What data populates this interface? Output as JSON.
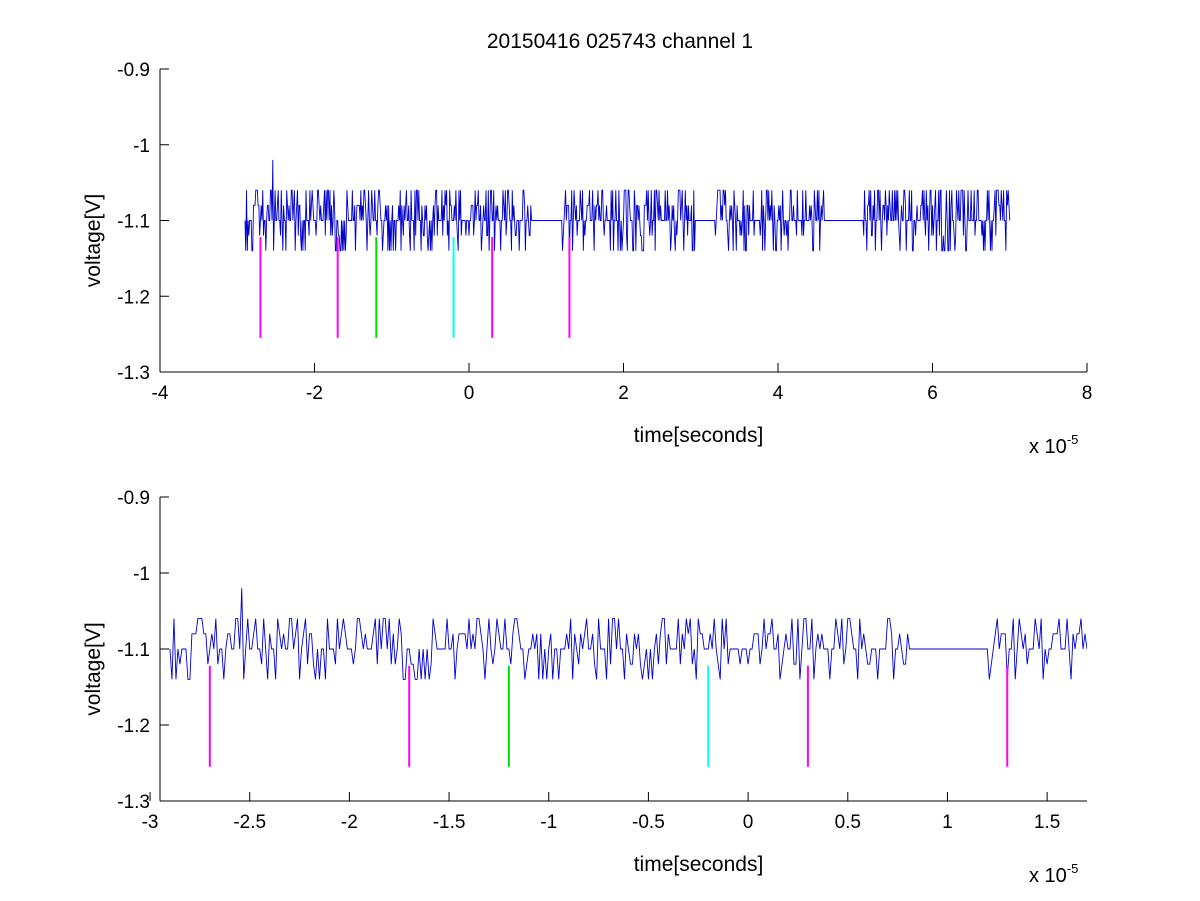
{
  "figure_title": "20150416 025743 channel 1",
  "colors": {
    "trace": "#0000cc",
    "marker_magenta": "#ff00ff",
    "marker_green": "#00dd00",
    "marker_cyan": "#00ffff",
    "axis": "#000000"
  },
  "trace_generation": {
    "dt": 1e-07,
    "seed": 7,
    "baseline_v": -1.1,
    "levels_v": [
      -1.14,
      -1.12,
      -1.1,
      -1.08,
      -1.06
    ],
    "spike": {
      "t": -2.54e-05,
      "v": -1.02
    }
  },
  "chart_data": [
    {
      "type": "line",
      "title": "20150416 025743 channel 1",
      "xlabel": "time[seconds]",
      "ylabel": "voltage[V]",
      "x_exponent_label": {
        "base": "x 10",
        "exp": "-5"
      },
      "xscale": 1e-05,
      "xlim": [
        -4,
        8
      ],
      "ylim": [
        -1.3,
        -0.9
      ],
      "xticks": [
        -4,
        -2,
        0,
        2,
        4,
        6,
        8
      ],
      "yticks": [
        -1.3,
        -1.2,
        -1.1,
        -1.0,
        -0.9
      ],
      "xtick_labels": [
        "-4",
        "-2",
        "0",
        "2",
        "4",
        "6",
        "8"
      ],
      "ytick_labels": [
        "-1.3",
        "-1.2",
        "-1.1",
        "-1",
        "-0.9"
      ],
      "grid": false,
      "series": [
        {
          "x_range": [
            -2.9e-05,
            7e-05
          ],
          "y_values_v": [
            -1.14,
            -1.12,
            -1.1,
            -1.08,
            -1.06,
            -1.02
          ],
          "gap_ranges": [
            [
              -1e-06,
              -5.5e-07
            ],
            [
              8e-06,
              1.18e-05
            ],
            [
              2.95e-05,
              3.18e-05
            ],
            [
              4.6e-05,
              5.1e-05
            ]
          ],
          "dense_ranges": [
            [
              -2.9e-05,
              -2e-06
            ],
            [
              1.18e-05,
              2.8e-05
            ],
            [
              3.2e-05,
              6.9e-05
            ]
          ]
        }
      ],
      "markers": [
        {
          "t": -2.7e-05,
          "y_top": -1.122,
          "y_bottom": -1.255,
          "color": "magenta"
        },
        {
          "t": -1.7e-05,
          "y_top": -1.122,
          "y_bottom": -1.255,
          "color": "magenta"
        },
        {
          "t": -1.2e-05,
          "y_top": -1.122,
          "y_bottom": -1.255,
          "color": "green"
        },
        {
          "t": -2e-06,
          "y_top": -1.122,
          "y_bottom": -1.255,
          "color": "cyan"
        },
        {
          "t": 3e-06,
          "y_top": -1.122,
          "y_bottom": -1.255,
          "color": "magenta"
        },
        {
          "t": 1.3e-05,
          "y_top": -1.122,
          "y_bottom": -1.255,
          "color": "magenta"
        }
      ]
    },
    {
      "type": "line",
      "title": "",
      "xlabel": "time[seconds]",
      "ylabel": "voltage[V]",
      "x_exponent_label": {
        "base": "x 10",
        "exp": "-5"
      },
      "xscale": 1e-05,
      "xlim": [
        -2.95,
        1.7
      ],
      "ylim": [
        -1.3,
        -0.9
      ],
      "xticks": [
        -3,
        -2.5,
        -2,
        -1.5,
        -1,
        -0.5,
        0,
        0.5,
        1,
        1.5
      ],
      "yticks": [
        -1.3,
        -1.2,
        -1.1,
        -1.0,
        -0.9
      ],
      "xtick_labels": [
        "-3",
        "-2.5",
        "-2",
        "-1.5",
        "-1",
        "-0.5",
        "0",
        "0.5",
        "1",
        "1.5"
      ],
      "ytick_labels": [
        "-1.3",
        "-1.2",
        "-1.1",
        "-1",
        "-0.9"
      ],
      "grid": false,
      "series": [
        {
          "x_range": [
            -2.9e-05,
            1.7e-05
          ],
          "y_values_v": [
            -1.14,
            -1.12,
            -1.1,
            -1.08,
            -1.06,
            -1.02
          ]
        }
      ],
      "markers": [
        {
          "t": -2.7e-05,
          "y_top": -1.122,
          "y_bottom": -1.255,
          "color": "magenta"
        },
        {
          "t": -1.7e-05,
          "y_top": -1.122,
          "y_bottom": -1.255,
          "color": "magenta"
        },
        {
          "t": -1.2e-05,
          "y_top": -1.122,
          "y_bottom": -1.255,
          "color": "green"
        },
        {
          "t": -2e-06,
          "y_top": -1.122,
          "y_bottom": -1.255,
          "color": "cyan"
        },
        {
          "t": 3e-06,
          "y_top": -1.122,
          "y_bottom": -1.255,
          "color": "magenta"
        },
        {
          "t": 1.3e-05,
          "y_top": -1.122,
          "y_bottom": -1.255,
          "color": "magenta"
        }
      ]
    }
  ]
}
